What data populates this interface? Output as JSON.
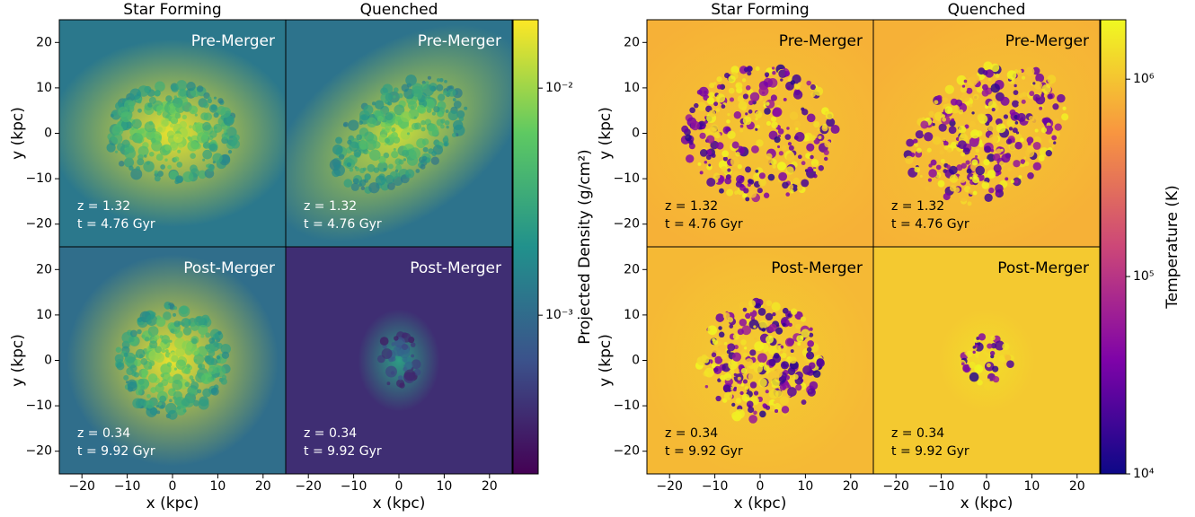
{
  "chart_data": [
    {
      "type": "image-grid",
      "columns": [
        "Star Forming",
        "Quenched"
      ],
      "rows": [
        {
          "label": "Pre-Merger",
          "z": "z = 1.32",
          "t": "t = 4.76 Gyr"
        },
        {
          "label": "Post-Merger",
          "z": "z = 0.34",
          "t": "t = 9.92 Gyr"
        }
      ],
      "xlabel": "x (kpc)",
      "ylabel": "y (kpc)",
      "xlim": [
        -25,
        25
      ],
      "xticks": [
        {
          "value": -20,
          "label": "−20"
        },
        {
          "value": -10,
          "label": "−10"
        },
        0,
        10,
        20
      ],
      "ylim": [
        -25,
        25
      ],
      "yticks": [
        {
          "value": -20,
          "label": "−20"
        },
        {
          "value": -10,
          "label": "−10"
        },
        0,
        10,
        20
      ],
      "annotation_color": "#ffffff",
      "colorbar": {
        "label": "Projected Density (g/cm²)",
        "colormap": "viridis",
        "scale": "log",
        "lim": [
          0.0002,
          0.02
        ],
        "ticks": [
          {
            "value": 0.001,
            "label": "10⁻³"
          },
          {
            "value": 0.01,
            "label": "10⁻²"
          }
        ]
      }
    },
    {
      "type": "image-grid",
      "columns": [
        "Star Forming",
        "Quenched"
      ],
      "rows": [
        {
          "label": "Pre-Merger",
          "z": "z = 1.32",
          "t": "t = 4.76 Gyr"
        },
        {
          "label": "Post-Merger",
          "z": "z = 0.34",
          "t": "t = 9.92 Gyr"
        }
      ],
      "xlabel": "x (kpc)",
      "ylabel": "y (kpc)",
      "xlim": [
        -25,
        25
      ],
      "xticks": [
        {
          "value": -20,
          "label": "−20"
        },
        {
          "value": -10,
          "label": "−10"
        },
        0,
        10,
        20
      ],
      "ylim": [
        -25,
        25
      ],
      "yticks": [
        {
          "value": -20,
          "label": "−20"
        },
        {
          "value": -10,
          "label": "−10"
        },
        0,
        10,
        20
      ],
      "annotation_color": "#000000",
      "colorbar": {
        "label": "Temperature (K)",
        "colormap": "plasma",
        "scale": "log",
        "lim": [
          10000,
          2000000
        ],
        "ticks": [
          {
            "value": 10000,
            "label": "10⁴"
          },
          {
            "value": 100000,
            "label": "10⁵"
          },
          {
            "value": 1000000,
            "label": "10⁶"
          }
        ]
      }
    }
  ]
}
